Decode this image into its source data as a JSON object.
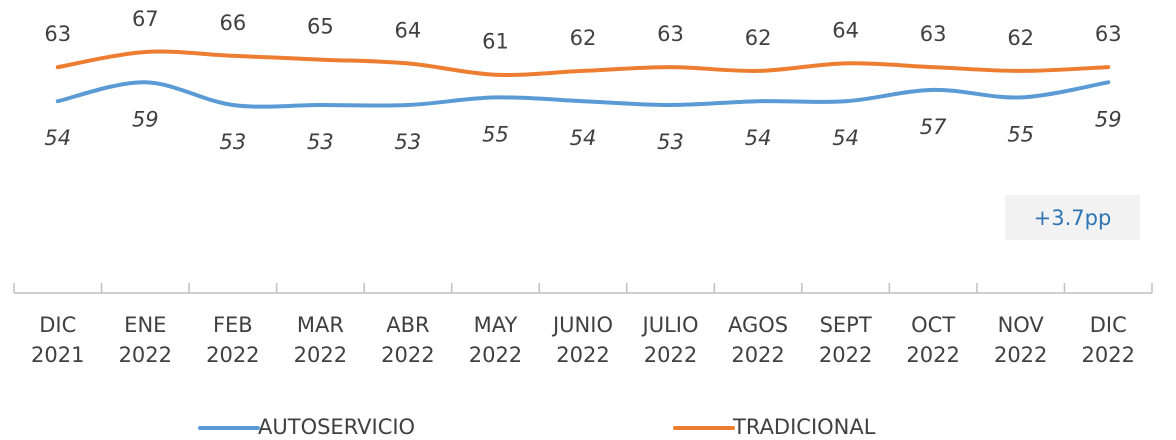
{
  "chart_data": {
    "type": "line",
    "categories": [
      "DIC 2021",
      "ENE 2022",
      "FEB 2022",
      "MAR 2022",
      "ABR 2022",
      "MAY 2022",
      "JUNIO 2022",
      "JULIO 2022",
      "AGOS 2022",
      "SEPT 2022",
      "OCT 2022",
      "NOV 2022",
      "DIC 2022"
    ],
    "series": [
      {
        "name": "AUTOSERVICIO",
        "color": "#5b9bd5",
        "values": [
          54,
          59,
          53,
          53,
          53,
          55,
          54,
          53,
          54,
          54,
          57,
          55,
          59
        ]
      },
      {
        "name": "TRADICIONAL",
        "color": "#ed7d31",
        "values": [
          63,
          67,
          66,
          65,
          64,
          61,
          62,
          63,
          62,
          64,
          63,
          62,
          63
        ]
      }
    ],
    "annotation": "+3.7pp"
  }
}
